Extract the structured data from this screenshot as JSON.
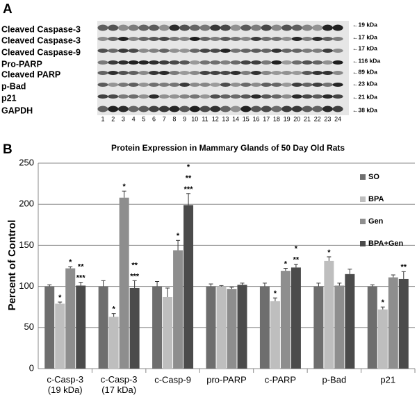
{
  "panel_a": {
    "label": "A",
    "proteins": [
      "Cleaved Caspase-3",
      "Cleaved Caspase-3",
      "Cleaved Caspase-9",
      "Pro-PARP",
      "Cleaved PARP",
      "p-Bad",
      "p21",
      "GAPDH"
    ],
    "markers": [
      "←19 kDa",
      "←17 kDa",
      "←17 kDa",
      "←116 kDa",
      "←89 kDa",
      "←23 kDa",
      "←21 kDa",
      "←38 kDa"
    ],
    "lanes": [
      "1",
      "2",
      "3",
      "4",
      "5",
      "6",
      "7",
      "8",
      "9",
      "10",
      "11",
      "12",
      "13",
      "14",
      "15",
      "16",
      "17",
      "18",
      "19",
      "20",
      "21",
      "22",
      "23",
      "24"
    ]
  },
  "chart_data": {
    "type": "bar",
    "panel_label": "B",
    "title": "Protein Expression in Mammary Glands of 50 Day Old Rats",
    "y_label": "Percent of Control",
    "categories": [
      "c-Casp-3\n(19 kDa)",
      "c-Casp-3\n(17 kDa)",
      "c-Casp-9",
      "pro-PARP",
      "c-PARP",
      "p-Bad",
      "p21"
    ],
    "series": [
      {
        "name": "SO",
        "color": "#6e6e6e",
        "values": [
          100,
          100,
          100,
          100,
          100,
          100,
          100
        ],
        "errors": [
          2,
          7,
          6,
          3,
          4,
          4,
          2
        ],
        "annotations": [
          null,
          null,
          null,
          null,
          null,
          null,
          null
        ]
      },
      {
        "name": "BPA",
        "color": "#bebebe",
        "values": [
          79,
          63,
          87,
          100,
          82,
          131,
          72
        ],
        "errors": [
          2,
          4,
          11,
          1,
          4,
          5,
          3
        ],
        "annotations": [
          "*",
          "*",
          null,
          null,
          "*",
          "*",
          "*"
        ]
      },
      {
        "name": "Gen",
        "color": "#8e8e8e",
        "values": [
          122,
          208,
          144,
          97,
          119,
          101,
          111
        ],
        "errors": [
          2,
          8,
          12,
          2,
          3,
          3,
          3
        ],
        "annotations": [
          "*",
          "*",
          "*",
          null,
          "*",
          null,
          null
        ]
      },
      {
        "name": "BPA+Gen",
        "color": "#4b4b4b",
        "values": [
          101,
          98,
          199,
          102,
          123,
          115,
          109
        ],
        "errors": [
          4,
          9,
          14,
          2,
          4,
          6,
          9
        ],
        "annotations": [
          "**\n***",
          "**\n***",
          "*\n**\n***",
          null,
          "*\n**",
          null,
          "**"
        ]
      }
    ],
    "ylim": [
      0,
      250
    ],
    "yticks": [
      0,
      50,
      100,
      150,
      200,
      250
    ],
    "grid": true,
    "legend": "right"
  }
}
